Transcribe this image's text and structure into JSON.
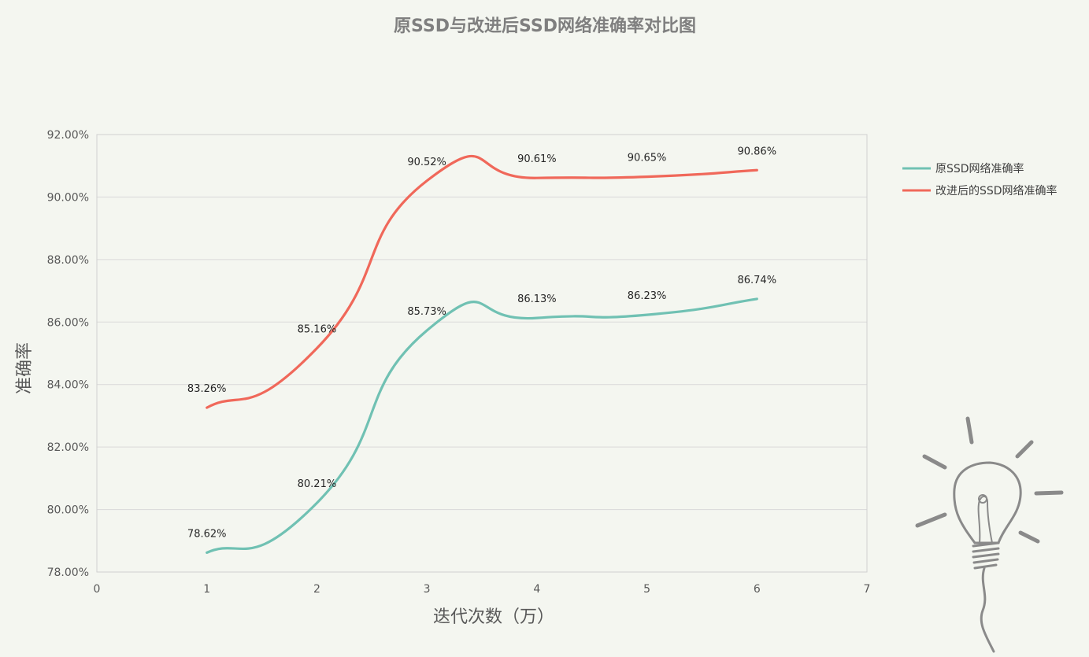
{
  "chart_data": {
    "type": "line",
    "title": "原SSD与改进后SSD网络准确率对比图",
    "xlabel": "迭代次数（万）",
    "ylabel": "准确率",
    "xlim": [
      0,
      7
    ],
    "ylim": [
      78,
      92
    ],
    "x_ticks": [
      "0",
      "1",
      "2",
      "3",
      "4",
      "5",
      "6",
      "7"
    ],
    "y_ticks": [
      "78.00%",
      "80.00%",
      "82.00%",
      "84.00%",
      "86.00%",
      "88.00%",
      "90.00%",
      "92.00%"
    ],
    "grid": true,
    "legend_position": "right",
    "x": [
      1,
      2,
      3,
      4,
      5,
      6
    ],
    "series": [
      {
        "name": "原SSD网络准确率",
        "color": "#70c1b3",
        "values": [
          78.62,
          80.21,
          85.73,
          86.13,
          86.23,
          86.74
        ],
        "labels": [
          "78.62%",
          "80.21%",
          "85.73%",
          "86.13%",
          "86.23%",
          "86.74%"
        ]
      },
      {
        "name": "改进后的SSD网络准确率",
        "color": "#f0685a",
        "values": [
          83.26,
          85.16,
          90.52,
          90.61,
          90.65,
          90.86
        ],
        "labels": [
          "83.26%",
          "85.16%",
          "90.52%",
          "90.61%",
          "90.65%",
          "90.86%"
        ]
      }
    ]
  },
  "decoration": {
    "icon": "lightbulb-icon"
  }
}
